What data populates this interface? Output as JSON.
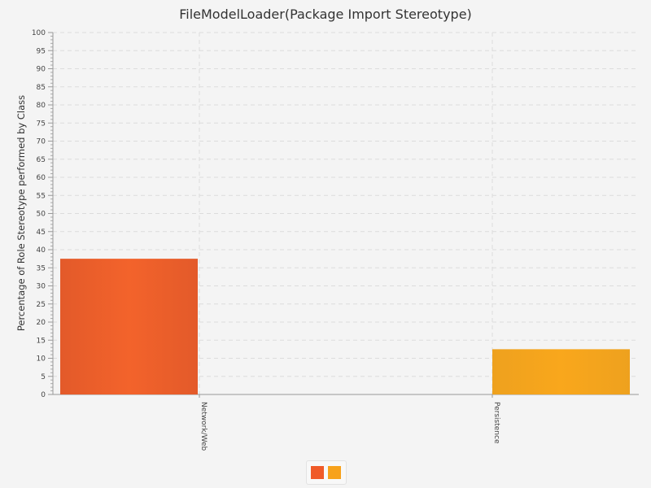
{
  "chart_data": {
    "type": "bar",
    "title": "FileModelLoader(Package Import Stereotype)",
    "ylabel": "Percentage of Role Stereotype performed by Class",
    "xlabel": "",
    "ylim": [
      0,
      100
    ],
    "ytick_step": 5,
    "grid": true,
    "categories": [
      "Network/Web",
      "Persistence"
    ],
    "series": [
      {
        "color": "#f05a28",
        "values": [
          37.5,
          0
        ]
      },
      {
        "color": "#f7a21b",
        "values": [
          0,
          12.5
        ]
      }
    ],
    "bars": [
      {
        "category": "Network/Web",
        "value": 37.5,
        "color": "#f05a28"
      },
      {
        "category": "Persistence",
        "value": 12.5,
        "color": "#f7a21b"
      }
    ],
    "legend_position": "bottom"
  }
}
